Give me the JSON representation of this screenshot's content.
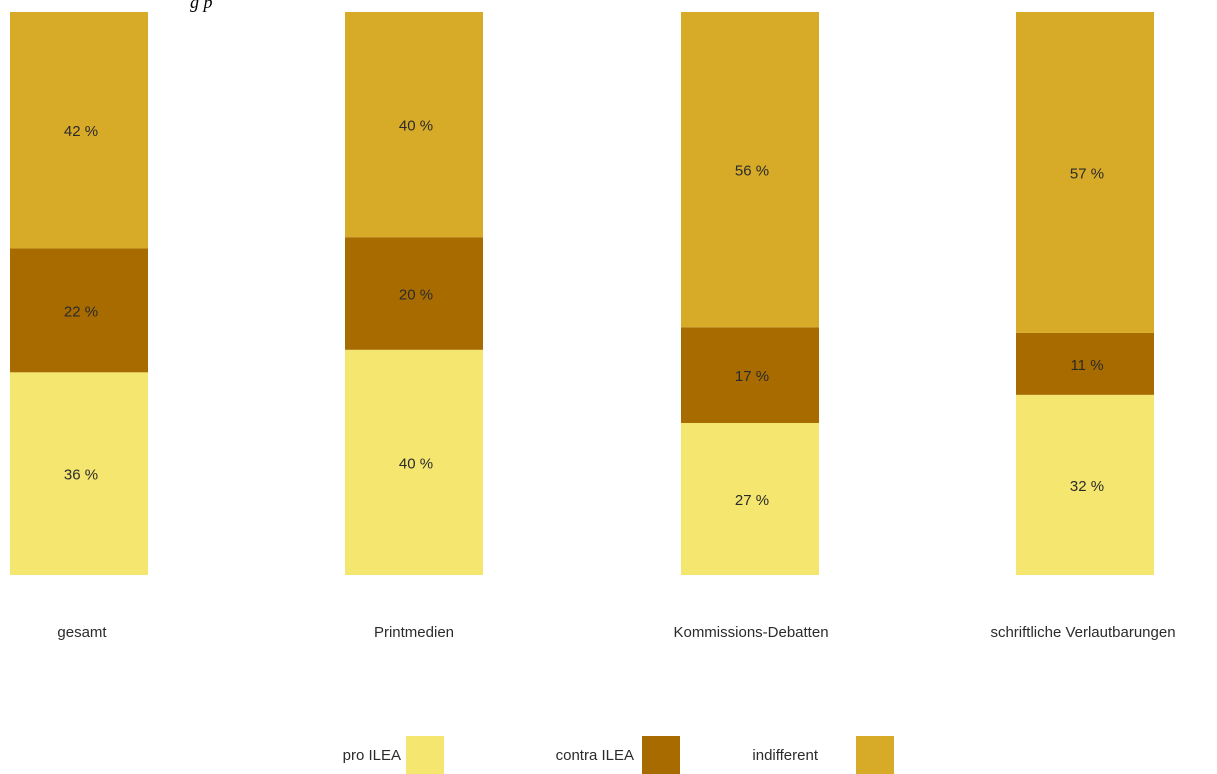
{
  "chart_data": {
    "type": "bar",
    "stacked": true,
    "unit_suffix": " %",
    "categories": [
      "gesamt",
      "Printmedien",
      "Kommissions-Debatten",
      "schriftliche Verlautbarungen"
    ],
    "series": [
      {
        "name": "pro ILEA",
        "values": [
          36,
          40,
          27,
          32
        ],
        "labels": [
          "36 %",
          "40 %",
          "27 %",
          "32 %"
        ],
        "color": "#f4e66f"
      },
      {
        "name": "contra ILEA",
        "values": [
          22,
          20,
          17,
          11
        ],
        "labels": [
          "22 %",
          "20 %",
          "17 %",
          "11 %"
        ],
        "color": "#a86b00"
      },
      {
        "name": "indifferent",
        "values": [
          42,
          40,
          56,
          57
        ],
        "labels": [
          "42 %",
          "40 %",
          "56 %",
          "57 %"
        ],
        "color": "#d7ab27"
      }
    ],
    "legend": {
      "position": "bottom"
    },
    "ylim": [
      0,
      100
    ],
    "grid": false
  },
  "header_fragment": "g                                         p"
}
